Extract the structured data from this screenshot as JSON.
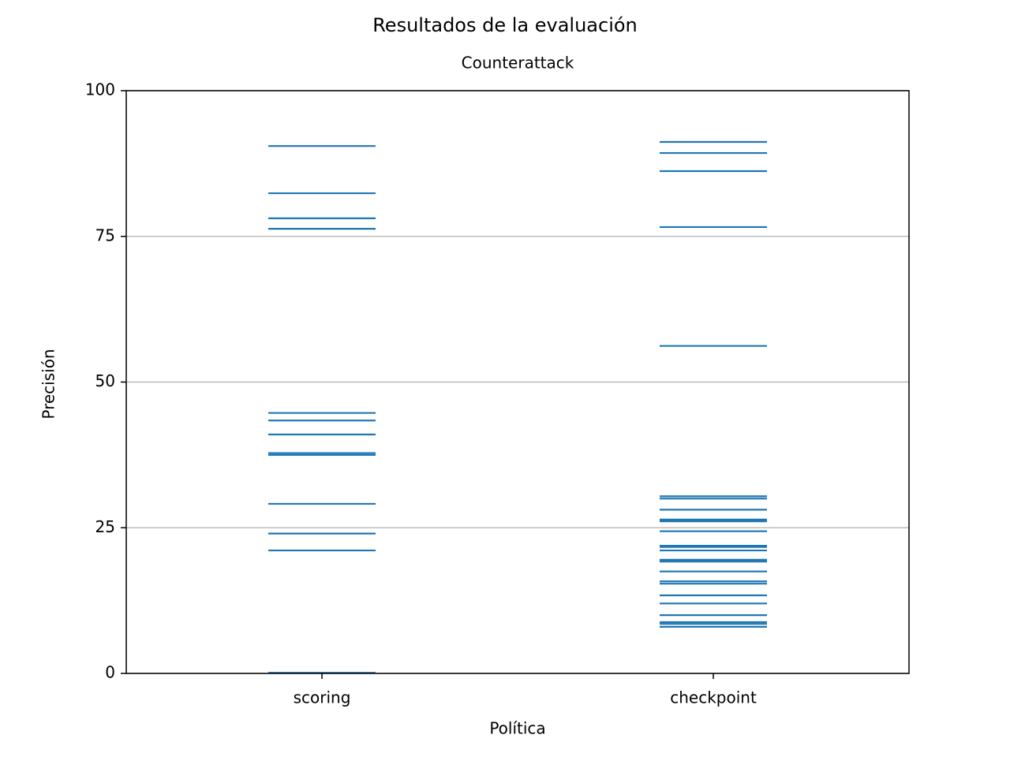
{
  "chart_data": {
    "type": "strip",
    "title": "Resultados de la evaluación",
    "subtitle": "Counterattack",
    "xlabel": "Política",
    "ylabel": "Precisión",
    "categories": [
      "scoring",
      "checkpoint"
    ],
    "values": [
      [
        90.5,
        82.4,
        78.1,
        76.3,
        44.7,
        43.4,
        41.0,
        37.8,
        37.5,
        29.1,
        24.0,
        21.1,
        0.1
      ],
      [
        91.2,
        89.3,
        86.2,
        76.6,
        56.2,
        30.4,
        30.0,
        28.1,
        26.4,
        26.1,
        24.4,
        21.9,
        21.7,
        21.1,
        19.5,
        19.2,
        17.5,
        15.8,
        15.4,
        13.4,
        12.0,
        10.0,
        8.8,
        8.5,
        8.0
      ]
    ],
    "color": "#1f77b4",
    "ylim": [
      0,
      100
    ],
    "yticks": [
      0,
      25,
      50,
      75,
      100
    ],
    "grid": true
  }
}
